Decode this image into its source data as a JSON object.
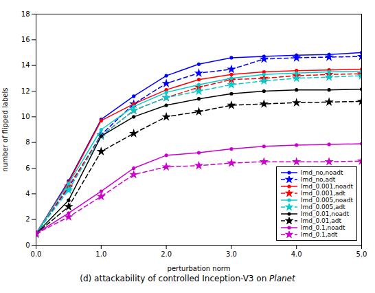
{
  "chart_data": {
    "type": "line",
    "xlabel": "perturbation norm",
    "ylabel": "number of flipped labels",
    "caption": "(d) attackability of controlled Inception-V3 on Planet",
    "x": [
      0,
      0.5,
      1.0,
      1.5,
      2.0,
      2.5,
      3.0,
      3.5,
      4.0,
      4.5,
      5.0
    ],
    "series": [
      {
        "name": "lmd_no,noadt",
        "color": "#0000ff",
        "line_style": "solid",
        "marker": "circle",
        "values": [
          0.9,
          5.0,
          9.8,
          11.6,
          13.2,
          14.1,
          14.6,
          14.7,
          14.8,
          14.85,
          15.0
        ]
      },
      {
        "name": "lmd_no,adt",
        "color": "#0000ff",
        "line_style": "dashed",
        "marker": "star",
        "values": [
          0.9,
          4.5,
          8.6,
          11.0,
          12.6,
          13.4,
          13.7,
          14.5,
          14.6,
          14.65,
          14.7
        ]
      },
      {
        "name": "lmd_0.001,noadt",
        "color": "#ff0000",
        "line_style": "solid",
        "marker": "circle",
        "values": [
          0.9,
          4.9,
          9.7,
          11.0,
          12.1,
          12.9,
          13.3,
          13.5,
          13.6,
          13.65,
          13.7
        ]
      },
      {
        "name": "lmd_0.001,adt",
        "color": "#ff0000",
        "line_style": "dashed",
        "marker": "star",
        "values": [
          0.9,
          4.6,
          8.5,
          10.5,
          11.5,
          12.3,
          12.9,
          13.0,
          13.2,
          13.3,
          13.35
        ]
      },
      {
        "name": "lmd_0.005,noadt",
        "color": "#00cccc",
        "line_style": "solid",
        "marker": "circle",
        "values": [
          0.9,
          4.8,
          9.0,
          10.8,
          11.9,
          12.5,
          13.0,
          13.3,
          13.4,
          13.5,
          13.55
        ]
      },
      {
        "name": "lmd_0.005,adt",
        "color": "#00cccc",
        "line_style": "dashed",
        "marker": "star",
        "values": [
          0.9,
          4.3,
          8.5,
          10.5,
          11.5,
          12.0,
          12.5,
          12.8,
          13.0,
          13.1,
          13.2
        ]
      },
      {
        "name": "lmd_0.01,noadt",
        "color": "#000000",
        "line_style": "solid",
        "marker": "circle",
        "values": [
          0.9,
          3.5,
          8.5,
          10.0,
          10.9,
          11.4,
          11.8,
          12.0,
          12.1,
          12.1,
          12.15
        ]
      },
      {
        "name": "lmd_0.01,adt",
        "color": "#000000",
        "line_style": "dashed",
        "marker": "star",
        "values": [
          0.9,
          3.0,
          7.3,
          8.7,
          10.0,
          10.4,
          10.9,
          11.0,
          11.1,
          11.15,
          11.2
        ]
      },
      {
        "name": "lmd_0.1,noadt",
        "color": "#cc00cc",
        "line_style": "solid",
        "marker": "circle",
        "values": [
          0.9,
          2.5,
          4.2,
          6.0,
          7.0,
          7.2,
          7.5,
          7.7,
          7.8,
          7.85,
          7.9
        ]
      },
      {
        "name": "lmd_0.1,adt",
        "color": "#cc00cc",
        "line_style": "dashed",
        "marker": "star",
        "values": [
          0.9,
          2.2,
          3.8,
          5.5,
          6.1,
          6.2,
          6.4,
          6.5,
          6.5,
          6.5,
          6.55
        ]
      }
    ],
    "xlim": [
      0,
      5
    ],
    "ylim": [
      0,
      18
    ],
    "xticks": [
      0,
      1,
      2,
      3,
      4,
      5
    ],
    "yticks": [
      0,
      2,
      4,
      6,
      8,
      10,
      12,
      14,
      16,
      18
    ],
    "grid": false,
    "legend": "lower right"
  }
}
